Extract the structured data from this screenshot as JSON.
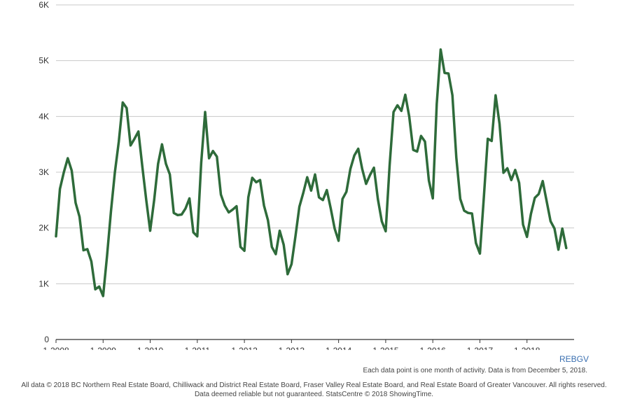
{
  "chart_data": {
    "type": "line",
    "title": "",
    "xlabel": "",
    "ylabel": "",
    "ylim": [
      0,
      6000
    ],
    "y_ticks": [
      "0",
      "1K",
      "2K",
      "3K",
      "4K",
      "5K",
      "6K"
    ],
    "x_ticks": [
      "1-2008",
      "1-2009",
      "1-2010",
      "1-2011",
      "1-2012",
      "1-2013",
      "1-2014",
      "1-2015",
      "1-2016",
      "1-2017",
      "1-2018"
    ],
    "series": [
      {
        "name": "REBGV",
        "color": "#2e6b3a",
        "values": [
          1850,
          2700,
          3000,
          3250,
          3030,
          2450,
          2200,
          1600,
          1620,
          1400,
          900,
          950,
          780,
          1500,
          2300,
          3000,
          3550,
          4250,
          4150,
          3480,
          3600,
          3730,
          3100,
          2500,
          1950,
          2500,
          3150,
          3500,
          3150,
          2960,
          2270,
          2230,
          2240,
          2350,
          2530,
          1920,
          1850,
          3170,
          4080,
          3250,
          3380,
          3280,
          2600,
          2400,
          2280,
          2330,
          2390,
          1660,
          1590,
          2550,
          2900,
          2820,
          2860,
          2400,
          2140,
          1660,
          1530,
          1950,
          1700,
          1170,
          1350,
          1850,
          2380,
          2630,
          2910,
          2670,
          2960,
          2550,
          2500,
          2680,
          2350,
          1990,
          1770,
          2520,
          2650,
          3060,
          3300,
          3420,
          3060,
          2790,
          2950,
          3080,
          2520,
          2120,
          1940,
          3120,
          4080,
          4200,
          4100,
          4390,
          4000,
          3400,
          3370,
          3650,
          3550,
          2850,
          2530,
          4220,
          5200,
          4780,
          4770,
          4380,
          3260,
          2520,
          2310,
          2270,
          2260,
          1730,
          1540,
          2550,
          3600,
          3560,
          4380,
          3870,
          2990,
          3070,
          2860,
          3040,
          2810,
          2060,
          1840,
          2250,
          2540,
          2610,
          2840,
          2480,
          2120,
          1990,
          1610,
          1990,
          1640
        ]
      }
    ]
  },
  "legend_label": "REBGV",
  "note": "Each data point is one month of activity. Data is from December 5, 2018.",
  "footer_line1": "All data © 2018 BC Northern Real Estate Board, Chilliwack and District Real Estate Board, Fraser Valley Real Estate Board, and Real Estate Board of Greater Vancouver. All rights reserved.",
  "footer_line2": "Data deemed reliable but not guaranteed. StatsCentre © 2018 ShowingTime."
}
